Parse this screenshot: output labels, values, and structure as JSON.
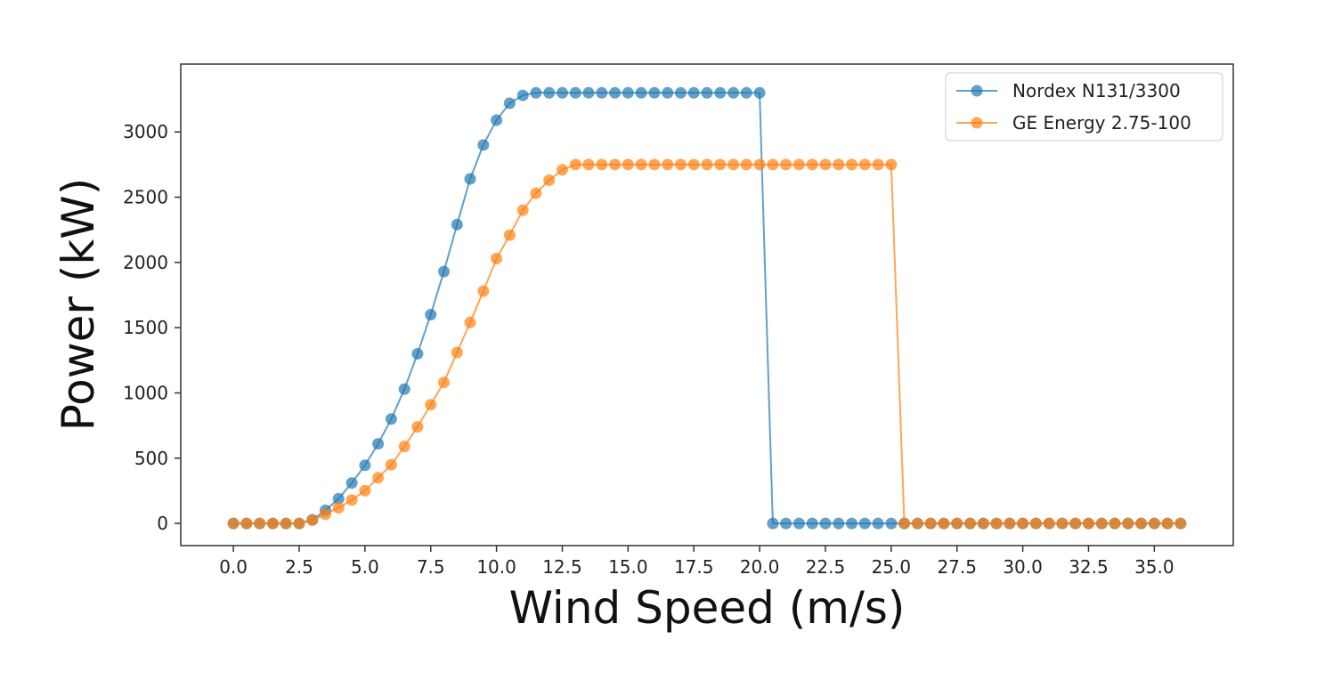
{
  "chart_data": {
    "type": "line",
    "title": "",
    "xlabel": "Wind Speed (m/s)",
    "ylabel": "Power (kW)",
    "xlim": [
      -2.0,
      38.0
    ],
    "ylim": [
      -170,
      3520
    ],
    "xticks": [
      0.0,
      2.5,
      5.0,
      7.5,
      10.0,
      12.5,
      15.0,
      17.5,
      20.0,
      22.5,
      25.0,
      27.5,
      30.0,
      32.5,
      35.0
    ],
    "xtick_labels": [
      "0.0",
      "2.5",
      "5.0",
      "7.5",
      "10.0",
      "12.5",
      "15.0",
      "17.5",
      "20.0",
      "22.5",
      "25.0",
      "27.5",
      "30.0",
      "32.5",
      "35.0"
    ],
    "yticks": [
      0,
      500,
      1000,
      1500,
      2000,
      2500,
      3000
    ],
    "ytick_labels": [
      "0",
      "500",
      "1000",
      "1500",
      "2000",
      "2500",
      "3000"
    ],
    "grid": false,
    "legend_position": "top-right",
    "x": [
      0.0,
      0.5,
      1.0,
      1.5,
      2.0,
      2.5,
      3.0,
      3.5,
      4.0,
      4.5,
      5.0,
      5.5,
      6.0,
      6.5,
      7.0,
      7.5,
      8.0,
      8.5,
      9.0,
      9.5,
      10.0,
      10.5,
      11.0,
      11.5,
      12.0,
      12.5,
      13.0,
      13.5,
      14.0,
      14.5,
      15.0,
      15.5,
      16.0,
      16.5,
      17.0,
      17.5,
      18.0,
      18.5,
      19.0,
      19.5,
      20.0,
      20.5,
      21.0,
      21.5,
      22.0,
      22.5,
      23.0,
      23.5,
      24.0,
      24.5,
      25.0,
      25.5,
      26.0,
      26.5,
      27.0,
      27.5,
      28.0,
      28.5,
      29.0,
      29.5,
      30.0,
      30.5,
      31.0,
      31.5,
      32.0,
      32.5,
      33.0,
      33.5,
      34.0,
      34.5,
      35.0,
      35.5,
      36.0
    ],
    "series": [
      {
        "name": "Nordex N131/3300",
        "color": "#1f77b4",
        "values": [
          0,
          0,
          0,
          0,
          0,
          0,
          28,
          100,
          190,
          310,
          445,
          610,
          800,
          1030,
          1300,
          1600,
          1930,
          2290,
          2640,
          2900,
          3090,
          3220,
          3280,
          3300,
          3300,
          3300,
          3300,
          3300,
          3300,
          3300,
          3300,
          3300,
          3300,
          3300,
          3300,
          3300,
          3300,
          3300,
          3300,
          3300,
          3300,
          0,
          0,
          0,
          0,
          0,
          0,
          0,
          0,
          0,
          0,
          0,
          0,
          0,
          0,
          0,
          0,
          0,
          0,
          0,
          0,
          0,
          0,
          0,
          0,
          0,
          0,
          0,
          0,
          0,
          0,
          0,
          0
        ]
      },
      {
        "name": "GE Energy 2.75-100",
        "color": "#ff7f0e",
        "values": [
          0,
          0,
          0,
          0,
          0,
          0,
          25,
          70,
          120,
          180,
          250,
          350,
          450,
          590,
          740,
          910,
          1080,
          1310,
          1540,
          1780,
          2030,
          2210,
          2400,
          2530,
          2630,
          2710,
          2750,
          2750,
          2750,
          2750,
          2750,
          2750,
          2750,
          2750,
          2750,
          2750,
          2750,
          2750,
          2750,
          2750,
          2750,
          2750,
          2750,
          2750,
          2750,
          2750,
          2750,
          2750,
          2750,
          2750,
          2750,
          0,
          0,
          0,
          0,
          0,
          0,
          0,
          0,
          0,
          0,
          0,
          0,
          0,
          0,
          0,
          0,
          0,
          0,
          0,
          0,
          0,
          0
        ]
      }
    ]
  }
}
